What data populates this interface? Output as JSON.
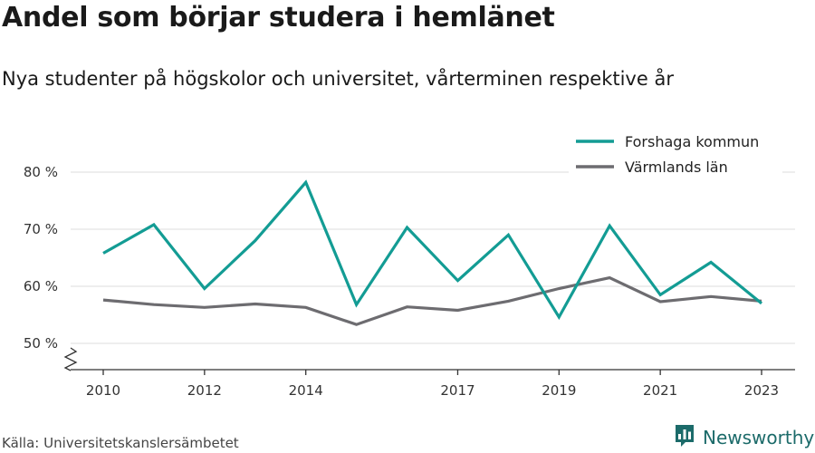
{
  "header": {
    "title": "Andel som börjar studera i hemlänet",
    "subtitle": "Nya studenter på högskolor och universitet, vårterminen respektive år"
  },
  "footer": {
    "source": "Källa: Universitetskanslersämbetet",
    "brand": "Newsworthy"
  },
  "colors": {
    "forshaga": "#139c94",
    "varmland": "#6d6c70",
    "grid": "#dddddd",
    "axis": "#333333",
    "brand": "#1c6b6a"
  },
  "icons": {
    "brand_logo": "bar-chart-icon",
    "axis_break": "axis-break-icon"
  },
  "chart_data": {
    "type": "line",
    "x": [
      2010,
      2011,
      2012,
      2013,
      2014,
      2015,
      2016,
      2017,
      2018,
      2019,
      2020,
      2021,
      2022,
      2023
    ],
    "x_tick_values": [
      2010,
      2012,
      2014,
      2017,
      2019,
      2021,
      2023
    ],
    "x_tick_labels": [
      "2010",
      "2012",
      "2014",
      "2017",
      "2019",
      "2021",
      "2023"
    ],
    "y_tick_values": [
      50,
      60,
      70,
      80
    ],
    "y_tick_labels": [
      "50 %",
      "60 %",
      "70 %",
      "80 %"
    ],
    "ylim": [
      50,
      80
    ],
    "y_axis_break": true,
    "grid": true,
    "legend_position": "top-right",
    "series": [
      {
        "name": "Forshaga kommun",
        "color": "#139c94",
        "values": [
          65.8,
          70.8,
          59.6,
          68.0,
          78.2,
          56.8,
          70.3,
          61.0,
          69.0,
          54.6,
          70.6,
          58.5,
          64.2,
          57.0
        ]
      },
      {
        "name": "Värmlands län",
        "color": "#6d6c70",
        "values": [
          57.6,
          56.8,
          56.3,
          56.9,
          56.3,
          53.3,
          56.4,
          55.8,
          57.4,
          59.6,
          61.5,
          57.3,
          58.2,
          57.4
        ]
      }
    ]
  }
}
